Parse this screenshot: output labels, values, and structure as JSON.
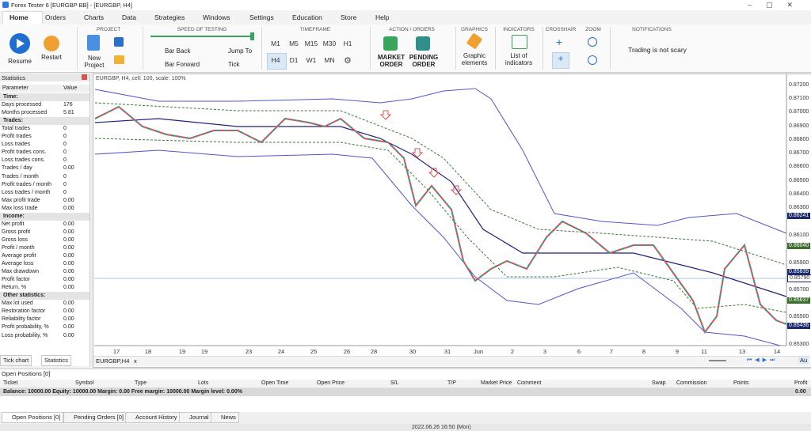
{
  "window": {
    "title": "Forex Tester 6  [EURGBP BB] - [EURGBP, H4]"
  },
  "menu": [
    "Home",
    "Orders",
    "Charts",
    "Data",
    "Strategies",
    "Windows",
    "Settings",
    "Education",
    "Store",
    "Help"
  ],
  "ribbon": {
    "resume": "Resume",
    "restart": "Restart",
    "project": {
      "label": "PROJECT",
      "new_project": "New Project"
    },
    "speed": {
      "label": "SPEED OF TESTING",
      "bar_back": "Bar Back",
      "bar_forward": "Bar Forward",
      "jump_to": "Jump To",
      "tick": "Tick"
    },
    "timeframe": {
      "label": "TIMEFRAME",
      "buttons": [
        "M1",
        "M5",
        "M15",
        "M30",
        "H1",
        "H4",
        "D1",
        "W1",
        "MN"
      ]
    },
    "orders": {
      "label": "ACTION / ORDERS",
      "market": "MARKET ORDER",
      "pending": "PENDING ORDER"
    },
    "graphics": {
      "label": "GRAPHICS",
      "elements": "Graphic elements"
    },
    "indicators": {
      "label": "INDICATORS",
      "list": "List of indicators"
    },
    "crosshair": {
      "label": "CROSSHAIR"
    },
    "zoom": {
      "label": "ZOOM"
    },
    "notifications": {
      "label": "NOTIFICATIONS",
      "message": "Trading is not scary"
    }
  },
  "statistics": {
    "title": "Statistics",
    "columns": [
      "Parameter",
      "Value"
    ],
    "rows": [
      [
        "Time:"
      ],
      [
        "Days processed",
        "176"
      ],
      [
        "Months processed",
        "5.81"
      ],
      [
        "Trades:"
      ],
      [
        "Total trades",
        "0"
      ],
      [
        "Profit trades",
        "0"
      ],
      [
        "Loss trades",
        "0"
      ],
      [
        "Profit trades cons.",
        "0"
      ],
      [
        "Loss trades cons.",
        "0"
      ],
      [
        "Trades / day",
        "0.00"
      ],
      [
        "Trades / month",
        "0"
      ],
      [
        "Profit trades / month",
        "0"
      ],
      [
        "Loss trades / month",
        "0"
      ],
      [
        "Max profit trade",
        "0.00"
      ],
      [
        "Max loss trade",
        "0.00"
      ],
      [
        "Income:"
      ],
      [
        "Net profit",
        "0.00"
      ],
      [
        "Gross profit",
        "0.00"
      ],
      [
        "Gross loss",
        "0.00"
      ],
      [
        "Profit / month",
        "0.00"
      ],
      [
        "Average profit",
        "0.00"
      ],
      [
        "Average loss",
        "0.00"
      ],
      [
        "Max drawdown",
        "0.00"
      ],
      [
        "Profit factor",
        "0.00"
      ],
      [
        "Return, %",
        "0.00"
      ],
      [
        "Other statistics:"
      ],
      [
        "Max lot used",
        "0.00"
      ],
      [
        "Restoration factor",
        "0.00"
      ],
      [
        "Reliability factor",
        "0.00"
      ],
      [
        "Profit probability, %",
        "0.00"
      ],
      [
        "Loss probability, %",
        "0.00"
      ]
    ]
  },
  "chart": {
    "header": "EURGBP, H4, cell: 100, scale: 100%",
    "price_labels": [
      "0.87200",
      "0.87100",
      "0.87000",
      "0.86900",
      "0.86800",
      "0.86700",
      "0.86600",
      "0.86500",
      "0.86400",
      "0.86300",
      "0.86241",
      "0.86100",
      "0.86040",
      "0.85900",
      "0.85839",
      "0.85790",
      "0.85700",
      "0.85637",
      "0.85500",
      "0.85436",
      "0.85300"
    ],
    "date_labels": [
      "17",
      "18",
      "19",
      "19",
      "23",
      "24",
      "25",
      "26",
      "28",
      "30",
      "31",
      "Jun",
      "2",
      "3",
      "6",
      "7",
      "8",
      "9",
      "11",
      "13",
      "14"
    ],
    "tab": "EURGBP,H4",
    "close": "x",
    "auto": "Au"
  },
  "left_tabs": [
    "Tick chart",
    "Statistics"
  ],
  "positions": {
    "title": "Open Positions [0]",
    "columns": [
      "Ticket",
      "Symbol",
      "Type",
      "Lots",
      "Open Time",
      "Open Price",
      "S/L",
      "T/P",
      "Market Price",
      "Comment",
      "Swap",
      "Commission",
      "Points",
      "Profit"
    ],
    "balance": "Balance: 10000.00 Equity: 10000.00 Margin: 0.00 Free margin: 10000.00 Margin level: 0.00%",
    "profit": "0.00"
  },
  "bottom_tabs": [
    "Open Positions [0]",
    "Pending Orders [0]",
    "Account History",
    "Journal",
    "News"
  ],
  "status": "2022.06.26 16:50 (Mon)"
}
